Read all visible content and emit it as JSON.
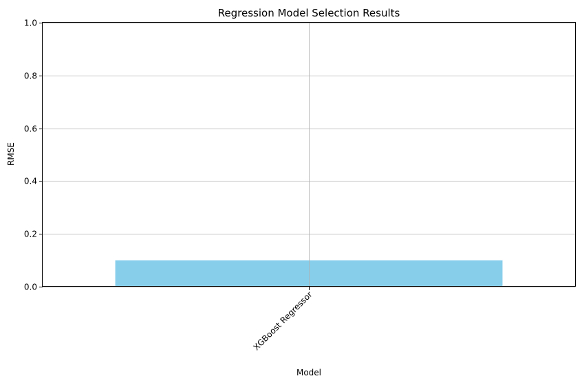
{
  "chart_data": {
    "type": "bar",
    "title": "Regression Model Selection Results",
    "xlabel": "Model",
    "ylabel": "RMSE",
    "categories": [
      "XGBoost Regressor"
    ],
    "values": [
      0.1
    ],
    "ylim": [
      0,
      1
    ],
    "yticks": [
      "0.0",
      "0.2",
      "0.4",
      "0.6",
      "0.8",
      "1.0"
    ],
    "grid": true,
    "x_tick_rotation": "45 degrees",
    "bar_color": "#87ceeb",
    "grid_color": "#b0b0b0"
  }
}
